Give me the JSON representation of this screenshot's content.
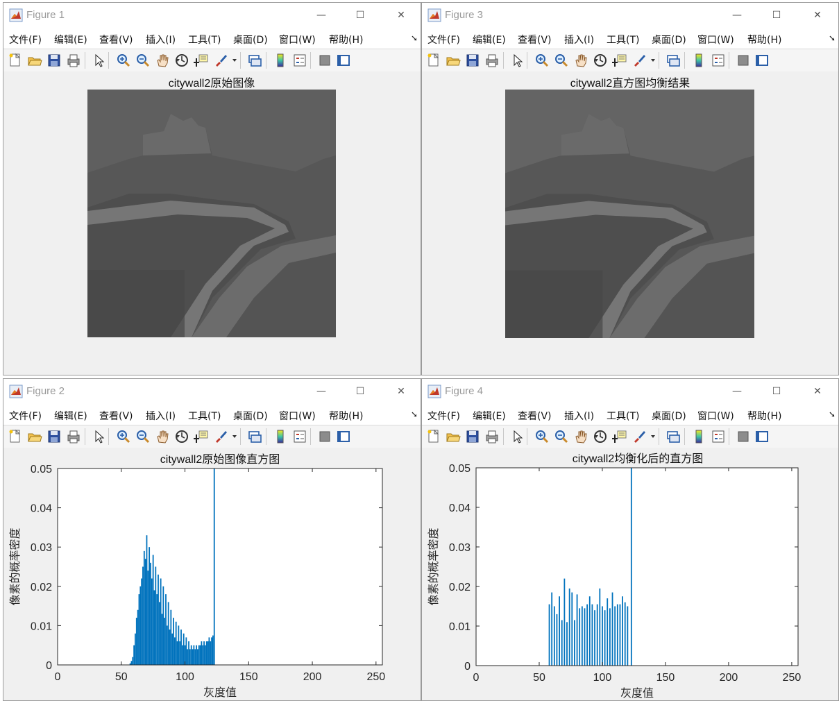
{
  "menu": [
    "文件(F)",
    "编辑(E)",
    "查看(V)",
    "插入(I)",
    "工具(T)",
    "桌面(D)",
    "窗口(W)",
    "帮助(H)"
  ],
  "menu_overflow_icon": "toolbar-overflow-arrow",
  "toolbar_icons": [
    "new-figure-icon",
    "open-file-icon",
    "save-icon",
    "print-icon",
    "select-arrow-icon",
    "zoom-in-icon",
    "zoom-out-icon",
    "pan-hand-icon",
    "rotate-3d-icon",
    "data-cursor-icon",
    "brush-icon",
    "dropdown-icon",
    "link-plot-icon",
    "colorbar-icon",
    "legend-icon",
    "hide-plot-tools-icon",
    "show-plot-tools-icon"
  ],
  "window_controls": {
    "minimize": "—",
    "maximize": "☐",
    "close": "✕"
  },
  "colors": {
    "bar": "#0072BD",
    "photo_bg": "#5e5e5e",
    "axis": "#262626"
  },
  "fig1": {
    "title": "Figure 1",
    "image_title": "citywall2原始图像"
  },
  "fig3": {
    "title": "Figure 3",
    "image_title": "citywall2直方图均衡结果"
  },
  "fig2": {
    "title": "Figure 2"
  },
  "fig4": {
    "title": "Figure 4"
  },
  "chart_data": [
    {
      "type": "bar",
      "title": "citywall2原始图像直方图",
      "xlabel": "灰度值",
      "ylabel": "像素的概率密度",
      "xlim": [
        0,
        255
      ],
      "ylim": [
        0,
        0.05
      ],
      "xticks": [
        "0",
        "50",
        "100",
        "150",
        "200",
        "250"
      ],
      "yticks": [
        "0",
        "0.01",
        "0.02",
        "0.03",
        "0.04",
        "0.05"
      ],
      "series": [
        {
          "x": [
            57,
            58,
            59,
            60,
            61,
            62,
            63,
            64,
            65,
            66,
            67,
            68,
            69,
            70,
            71,
            72,
            73,
            74,
            75,
            76,
            77,
            78,
            79,
            80,
            81,
            82,
            83,
            84,
            85,
            86,
            87,
            88,
            89,
            90,
            91,
            92,
            93,
            94,
            95,
            96,
            97,
            98,
            99,
            100,
            101,
            102,
            103,
            104,
            105,
            106,
            107,
            108,
            109,
            110,
            111,
            112,
            113,
            114,
            115,
            116,
            117,
            118,
            119,
            120,
            121,
            122,
            123
          ],
          "values": [
            0.0004,
            0.001,
            0.002,
            0.005,
            0.008,
            0.012,
            0.014,
            0.018,
            0.02,
            0.022,
            0.025,
            0.029,
            0.027,
            0.033,
            0.024,
            0.03,
            0.026,
            0.022,
            0.028,
            0.019,
            0.025,
            0.018,
            0.023,
            0.016,
            0.022,
            0.013,
            0.02,
            0.012,
            0.018,
            0.01,
            0.016,
            0.009,
            0.014,
            0.008,
            0.012,
            0.007,
            0.011,
            0.006,
            0.01,
            0.006,
            0.009,
            0.005,
            0.008,
            0.005,
            0.007,
            0.004,
            0.006,
            0.004,
            0.005,
            0.004,
            0.005,
            0.004,
            0.005,
            0.004,
            0.005,
            0.005,
            0.006,
            0.005,
            0.006,
            0.005,
            0.006,
            0.006,
            0.007,
            0.006,
            0.007,
            0.0075,
            0.05
          ]
        }
      ]
    },
    {
      "type": "bar",
      "title": "citywall2均衡化后的直方图",
      "xlabel": "灰度值",
      "ylabel": "像素的概率密度",
      "xlim": [
        0,
        255
      ],
      "ylim": [
        0,
        0.05
      ],
      "xticks": [
        "0",
        "50",
        "100",
        "150",
        "200",
        "250"
      ],
      "yticks": [
        "0",
        "0.01",
        "0.02",
        "0.03",
        "0.04",
        "0.05"
      ],
      "series": [
        {
          "x": [
            58,
            60,
            62,
            64,
            66,
            68,
            70,
            72,
            74,
            76,
            78,
            80,
            82,
            84,
            86,
            88,
            90,
            92,
            94,
            96,
            98,
            100,
            102,
            104,
            106,
            108,
            110,
            112,
            114,
            116,
            118,
            120,
            123
          ],
          "values": [
            0.0155,
            0.0185,
            0.015,
            0.013,
            0.0175,
            0.0115,
            0.022,
            0.011,
            0.0195,
            0.0185,
            0.0115,
            0.018,
            0.0145,
            0.015,
            0.0145,
            0.0155,
            0.0175,
            0.0155,
            0.014,
            0.0155,
            0.0195,
            0.015,
            0.014,
            0.017,
            0.0145,
            0.0185,
            0.015,
            0.0155,
            0.0155,
            0.0175,
            0.016,
            0.015,
            0.05
          ]
        }
      ]
    }
  ]
}
